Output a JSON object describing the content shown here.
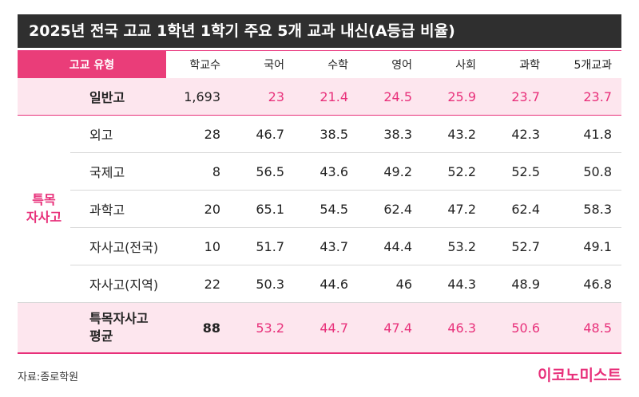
{
  "title": "2025년 전국 고교 1학년 1학기 주요 5개 교과 내신(A등급 비율)",
  "chart_data": {
    "type": "table",
    "columns": [
      "고교 유형",
      "학교수",
      "국어",
      "수학",
      "영어",
      "사회",
      "과학",
      "5개교과"
    ],
    "general_row": {
      "label": "일반고",
      "values": [
        "1,693",
        "23",
        "21.4",
        "24.5",
        "25.9",
        "23.7",
        "23.7"
      ]
    },
    "group_label_line1": "특목",
    "group_label_line2": "자사고",
    "group_rows": [
      {
        "label": "외고",
        "values": [
          "28",
          "46.7",
          "38.5",
          "38.3",
          "43.2",
          "42.3",
          "41.8"
        ]
      },
      {
        "label": "국제고",
        "values": [
          "8",
          "56.5",
          "43.6",
          "49.2",
          "52.2",
          "52.5",
          "50.8"
        ]
      },
      {
        "label": "과학고",
        "values": [
          "20",
          "65.1",
          "54.5",
          "62.4",
          "47.2",
          "62.4",
          "58.3"
        ]
      },
      {
        "label": "자사고(전국)",
        "values": [
          "10",
          "51.7",
          "43.7",
          "44.4",
          "53.2",
          "52.7",
          "49.1"
        ]
      },
      {
        "label": "자사고(지역)",
        "values": [
          "22",
          "50.3",
          "44.6",
          "46",
          "44.3",
          "48.9",
          "46.8"
        ]
      }
    ],
    "average_row": {
      "label_line1": "특목자사고",
      "label_line2": "평균",
      "values": [
        "88",
        "53.2",
        "44.7",
        "47.4",
        "46.3",
        "50.6",
        "48.5"
      ]
    }
  },
  "footer": {
    "source": "자료:종로학원",
    "logo": "이코노미스트"
  },
  "colors": {
    "accent": "#e8307a",
    "header_bg": "#ea3d79",
    "highlight_bg": "#fde6ee",
    "title_bg": "#2f2f2f"
  }
}
